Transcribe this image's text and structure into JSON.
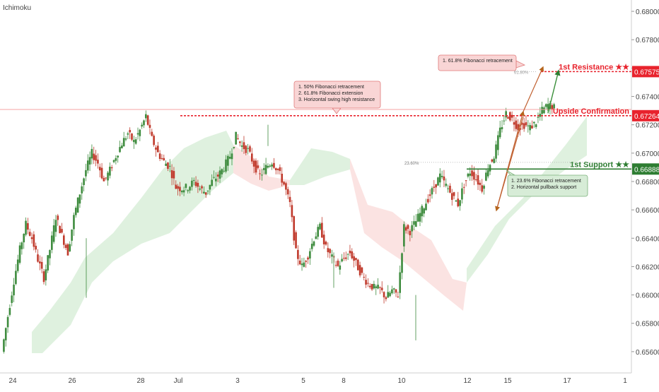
{
  "indicator_label": "Ichimoku",
  "colors": {
    "up": "#26a69a",
    "down": "#ef5350",
    "candle_up": "#3d8b3d",
    "candle_down": "#c0392b",
    "cloud_green": "#dcefdc",
    "cloud_red": "#fbe0df",
    "resistance": "#e8232d",
    "support": "#2e7d32",
    "axis_text": "#444444"
  },
  "chart_data": {
    "type": "candlestick",
    "title": "",
    "xlabel": "",
    "ylabel": "",
    "ylim": [
      0.6545,
      0.6808
    ],
    "x_ticks": [
      "24",
      "26",
      "28",
      "Jul",
      "3",
      "5",
      "8",
      "10",
      "12",
      "15",
      "17",
      "1"
    ],
    "y_ticks": [
      "0.68000",
      "0.67800",
      "0.67600",
      "0.67400",
      "0.67200",
      "0.67000",
      "0.66800",
      "0.66600",
      "0.66400",
      "0.66200",
      "0.66000",
      "0.65800",
      "0.65600"
    ],
    "levels": [
      {
        "name": "1st Resistance ★★",
        "value": "0.67575",
        "num": 0.67575
      },
      {
        "name": "Upside Confirmation",
        "value": "0.67264",
        "num": 0.67264
      },
      {
        "name": "1st Support ★★",
        "value": "0.66888",
        "num": 0.66888
      }
    ],
    "fib_labels": [
      {
        "text": "61.80%",
        "num": 0.67575
      },
      {
        "text": "23.60%",
        "num": 0.66935
      }
    ],
    "annotations": [
      {
        "lines": [
          "1. 61.8% Fibonacci retracement"
        ]
      },
      {
        "lines": [
          "1. 50% Fibonacci retracement",
          "2. 61.8% Fibonacci extension",
          "3. Horizontal swing high resistance"
        ]
      },
      {
        "lines": [
          "1. 23.6% Fibonacci retracement",
          "2. Horizontal pullback support"
        ]
      }
    ],
    "price_path": [
      0.656,
      0.6585,
      0.661,
      0.6632,
      0.665,
      0.664,
      0.6625,
      0.6612,
      0.6632,
      0.6655,
      0.6642,
      0.663,
      0.6655,
      0.6672,
      0.6688,
      0.67,
      0.6693,
      0.668,
      0.6688,
      0.6698,
      0.6707,
      0.6714,
      0.6708,
      0.6716,
      0.6726,
      0.671,
      0.67,
      0.6694,
      0.669,
      0.6676,
      0.6675,
      0.6676,
      0.668,
      0.6675,
      0.6672,
      0.668,
      0.6684,
      0.669,
      0.6698,
      0.6712,
      0.6705,
      0.6702,
      0.6692,
      0.6684,
      0.669,
      0.6694,
      0.6688,
      0.6678,
      0.6664,
      0.663,
      0.662,
      0.6628,
      0.664,
      0.6648,
      0.6633,
      0.6626,
      0.662,
      0.6626,
      0.663,
      0.6622,
      0.6614,
      0.6608,
      0.6605,
      0.6604,
      0.6598,
      0.6603,
      0.66,
      0.6648,
      0.6645,
      0.6652,
      0.666,
      0.6668,
      0.6676,
      0.6684,
      0.6677,
      0.667,
      0.6664,
      0.6678,
      0.6687,
      0.6682,
      0.6675,
      0.669,
      0.6698,
      0.6716,
      0.6728,
      0.6724,
      0.6718,
      0.672,
      0.6718,
      0.6722,
      0.673,
      0.6734,
      0.6732
    ]
  }
}
